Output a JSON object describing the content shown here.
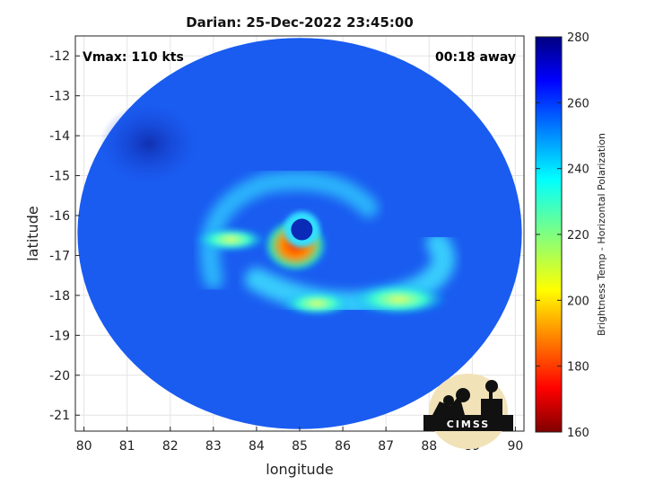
{
  "chart_data": {
    "type": "heatmap",
    "title": "Darian: 25-Dec-2022 23:45:00",
    "xlabel": "longitude",
    "ylabel": "latitude",
    "xlim": [
      79.8,
      90.2
    ],
    "ylim": [
      -21.4,
      -11.5
    ],
    "xticks": [
      "80",
      "81",
      "82",
      "83",
      "84",
      "85",
      "86",
      "87",
      "88",
      "89",
      "90"
    ],
    "yticks": [
      "-12",
      "-13",
      "-14",
      "-15",
      "-16",
      "-17",
      "-18",
      "-19",
      "-20",
      "-21"
    ],
    "grid": true,
    "annotations": {
      "left": "Vmax: 110 kts",
      "right": "00:18 away"
    },
    "colorbar": {
      "label": "Brightness Temp - Horizontal Polarization",
      "range": [
        160,
        280
      ],
      "ticks": [
        "160",
        "180",
        "200",
        "220",
        "240",
        "260",
        "280"
      ],
      "colormap": "jet"
    },
    "swath": {
      "center": [
        85.0,
        -16.45
      ],
      "semi_axes_deg": [
        5.15,
        4.9
      ]
    },
    "features": {
      "eye": {
        "lon": 85.05,
        "lat": -16.35,
        "value": 262
      },
      "eyewall": {
        "lon": 84.9,
        "lat": -16.75,
        "value": 185
      },
      "background_value": 258,
      "rainbands": [
        {
          "lon": 85.4,
          "lat": -18.2,
          "value": 225
        },
        {
          "lon": 87.3,
          "lat": -18.1,
          "value": 215
        },
        {
          "lon": 83.4,
          "lat": -16.6,
          "value": 238
        }
      ]
    },
    "logo": "CIMSS"
  }
}
